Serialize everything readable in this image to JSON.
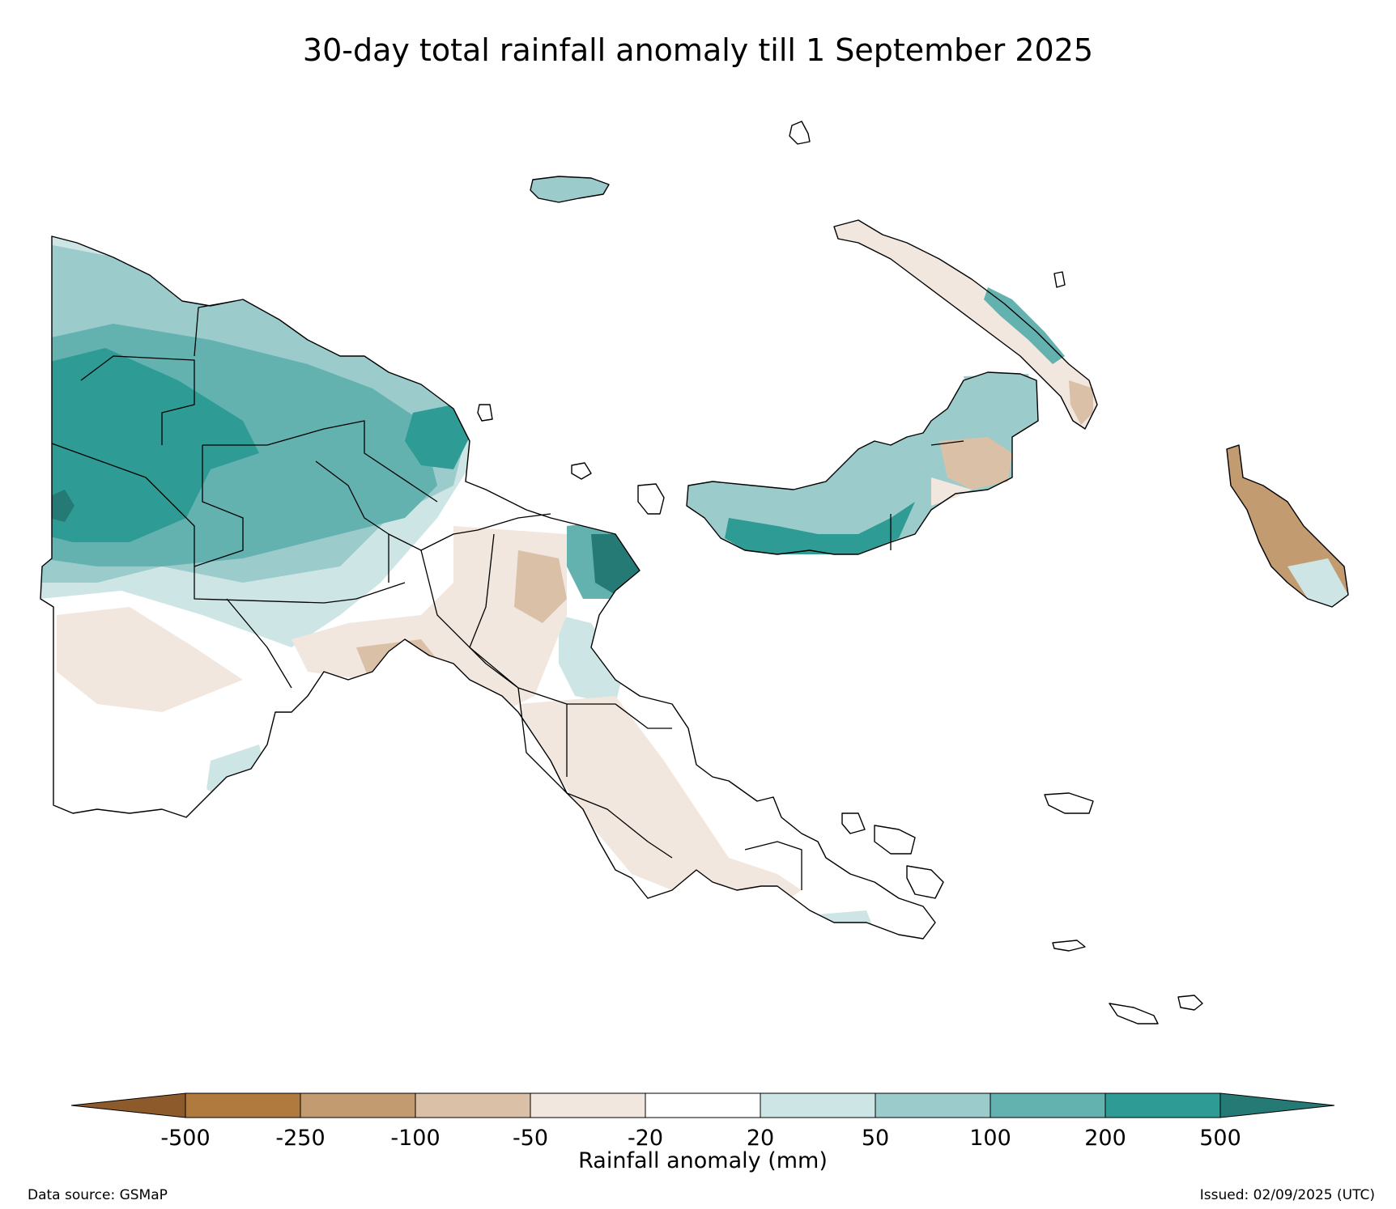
{
  "title": "30-day total rainfall anomaly till 1 September 2025",
  "colorbar": {
    "label": "Rainfall anomaly (mm)",
    "ticks": [
      "-500",
      "-250",
      "-100",
      "-50",
      "-20",
      "20",
      "50",
      "100",
      "200",
      "500"
    ],
    "bins": [
      {
        "range": "< -500",
        "color": "#8c5a2b"
      },
      {
        "range": "-500 to -250",
        "color": "#b07a3e"
      },
      {
        "range": "-250 to -100",
        "color": "#c39b70"
      },
      {
        "range": "-100 to -50",
        "color": "#d9c0a6"
      },
      {
        "range": "-50 to -20",
        "color": "#f1e7df"
      },
      {
        "range": "-20 to 20",
        "color": "#ffffff"
      },
      {
        "range": "20 to 50",
        "color": "#cde6e5"
      },
      {
        "range": "50 to 100",
        "color": "#9bcccb"
      },
      {
        "range": "100 to 200",
        "color": "#64b2b0"
      },
      {
        "range": "200 to 500",
        "color": "#2e9b95"
      },
      {
        "range": "> 500",
        "color": "#267a76"
      }
    ]
  },
  "footer": {
    "source": "Data source: GSMaP",
    "issued": "Issued: 02/09/2025 (UTC)"
  }
}
